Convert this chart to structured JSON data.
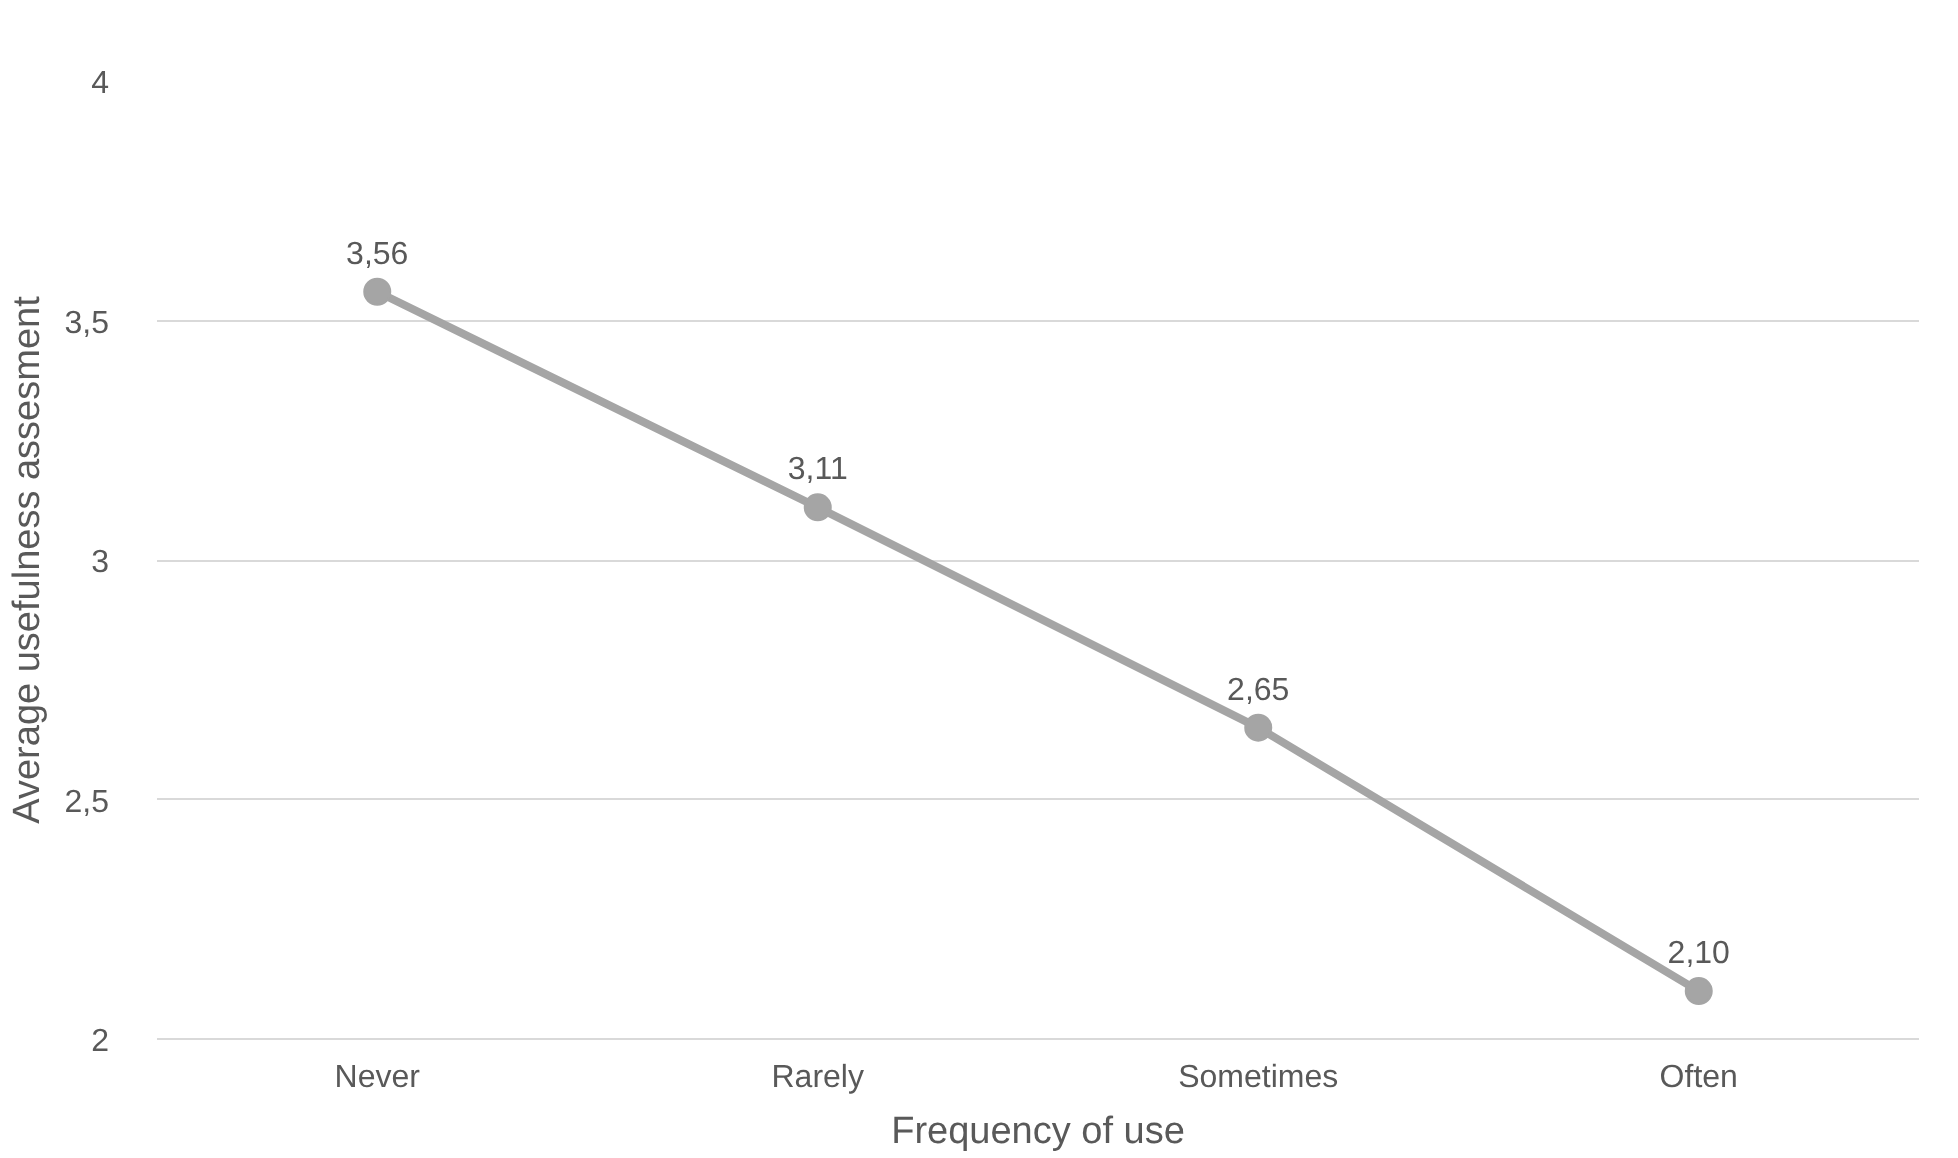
{
  "chart_data": {
    "type": "line",
    "xlabel": "Frequency of use",
    "ylabel": "Average usefulness assesment",
    "categories": [
      "Never",
      "Rarely",
      "Sometimes",
      "Often"
    ],
    "series": [
      {
        "color": "#a5a5a5",
        "values": [
          3.56,
          3.11,
          2.65,
          2.1
        ],
        "value_labels": [
          "3,56",
          "3,11",
          "2,65",
          "2,10"
        ]
      }
    ],
    "ylim": [
      2,
      4
    ],
    "yticks": [
      2,
      {
        "value": 2.5,
        "label": "2,5"
      },
      3,
      {
        "value": 3.5,
        "label": "3,5"
      },
      4
    ],
    "grid": "y",
    "marker": "circle",
    "line_style": "solid"
  }
}
